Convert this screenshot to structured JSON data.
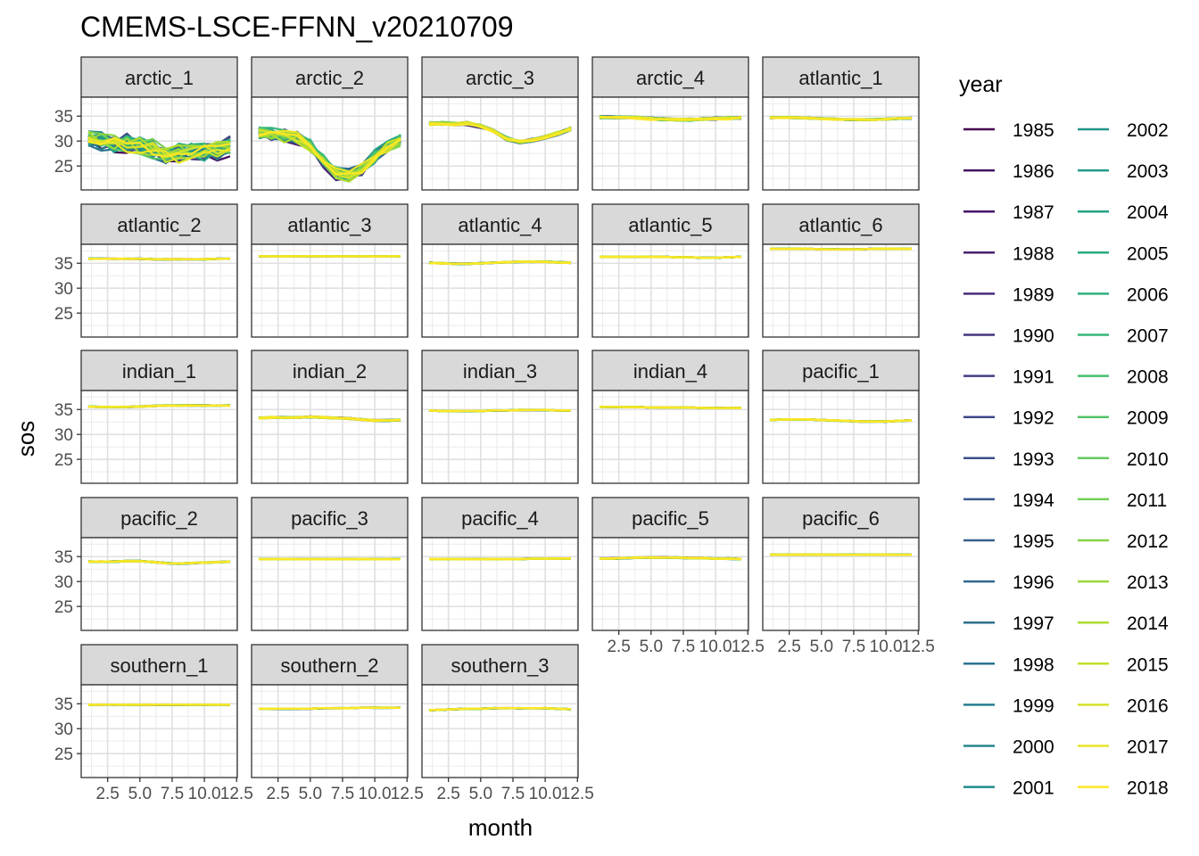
{
  "chart_data": {
    "type": "line",
    "title": "CMEMS-LSCE-FFNN_v20210709",
    "xlabel": "month",
    "ylabel": "sos",
    "x_ticks": [
      "2.5",
      "5.0",
      "7.5",
      "10.0",
      "12.5"
    ],
    "x_tick_values": [
      2.5,
      5.0,
      7.5,
      10.0,
      12.5
    ],
    "y_ticks": [
      "25",
      "30",
      "35"
    ],
    "y_tick_values": [
      25,
      30,
      35
    ],
    "xlim": [
      0.45,
      12.55
    ],
    "ylim": [
      20.2,
      38.8
    ],
    "grid": true,
    "legend": {
      "title": "year",
      "position": "right",
      "columns": 2,
      "items": [
        "1985",
        "1986",
        "1987",
        "1988",
        "1989",
        "1990",
        "1991",
        "1992",
        "1993",
        "1994",
        "1995",
        "1996",
        "1997",
        "1998",
        "1999",
        "2000",
        "2001",
        "2002",
        "2003",
        "2004",
        "2005",
        "2006",
        "2007",
        "2008",
        "2009",
        "2010",
        "2011",
        "2012",
        "2013",
        "2014",
        "2015",
        "2016",
        "2017",
        "2018"
      ]
    },
    "palette": "viridis",
    "series_key": "year",
    "years_start": 1985,
    "years_end": 2018,
    "panels": [
      {
        "name": "arctic_1",
        "profile": [
          30.5,
          30.0,
          29.5,
          29.5,
          29.0,
          28.5,
          27.5,
          27.5,
          28.0,
          28.0,
          28.0,
          29.0
        ],
        "variability": 2.2,
        "x_tick_labels": false
      },
      {
        "name": "arctic_2",
        "profile": [
          31.5,
          31.5,
          31.0,
          30.5,
          29.0,
          26.0,
          23.5,
          23.0,
          24.5,
          27.0,
          29.0,
          30.0
        ],
        "variability": 1.5,
        "x_tick_labels": false
      },
      {
        "name": "arctic_3",
        "profile": [
          33.5,
          33.5,
          33.5,
          33.5,
          33.0,
          32.0,
          30.5,
          29.8,
          30.2,
          30.8,
          31.5,
          32.5
        ],
        "variability": 0.4,
        "x_tick_labels": false
      },
      {
        "name": "arctic_4",
        "profile": [
          34.8,
          34.8,
          34.8,
          34.7,
          34.5,
          34.4,
          34.3,
          34.3,
          34.4,
          34.5,
          34.6,
          34.7
        ],
        "variability": 0.3,
        "x_tick_labels": false
      },
      {
        "name": "atlantic_1",
        "profile": [
          34.7,
          34.7,
          34.7,
          34.6,
          34.5,
          34.4,
          34.3,
          34.3,
          34.3,
          34.4,
          34.5,
          34.6
        ],
        "variability": 0.15,
        "x_tick_labels": false
      },
      {
        "name": "atlantic_2",
        "profile": [
          35.9,
          35.9,
          35.9,
          35.9,
          35.9,
          35.8,
          35.8,
          35.8,
          35.8,
          35.8,
          35.9,
          35.9
        ],
        "variability": 0.06,
        "x_tick_labels": false
      },
      {
        "name": "atlantic_3",
        "profile": [
          36.4,
          36.4,
          36.4,
          36.4,
          36.4,
          36.4,
          36.4,
          36.4,
          36.4,
          36.4,
          36.4,
          36.4
        ],
        "variability": 0.05,
        "x_tick_labels": false
      },
      {
        "name": "atlantic_4",
        "profile": [
          35.1,
          35.0,
          34.9,
          34.9,
          35.0,
          35.1,
          35.2,
          35.3,
          35.3,
          35.3,
          35.2,
          35.1
        ],
        "variability": 0.1,
        "x_tick_labels": false
      },
      {
        "name": "atlantic_5",
        "profile": [
          36.3,
          36.3,
          36.3,
          36.3,
          36.3,
          36.3,
          36.2,
          36.2,
          36.1,
          36.1,
          36.2,
          36.3
        ],
        "variability": 0.05,
        "x_tick_labels": false
      },
      {
        "name": "atlantic_6",
        "profile": [
          37.9,
          37.9,
          37.9,
          37.9,
          37.8,
          37.8,
          37.8,
          37.8,
          37.9,
          37.9,
          37.9,
          37.9
        ],
        "variability": 0.05,
        "x_tick_labels": false
      },
      {
        "name": "indian_1",
        "profile": [
          35.6,
          35.5,
          35.5,
          35.5,
          35.6,
          35.7,
          35.8,
          35.8,
          35.8,
          35.8,
          35.8,
          35.8
        ],
        "variability": 0.08,
        "x_tick_labels": false
      },
      {
        "name": "indian_2",
        "profile": [
          33.3,
          33.4,
          33.4,
          33.4,
          33.5,
          33.4,
          33.3,
          33.2,
          33.0,
          32.8,
          32.8,
          32.9
        ],
        "variability": 0.15,
        "x_tick_labels": false
      },
      {
        "name": "indian_3",
        "profile": [
          34.8,
          34.7,
          34.7,
          34.7,
          34.7,
          34.8,
          34.8,
          34.9,
          34.9,
          34.9,
          34.8,
          34.8
        ],
        "variability": 0.06,
        "x_tick_labels": false
      },
      {
        "name": "indian_4",
        "profile": [
          35.5,
          35.5,
          35.5,
          35.5,
          35.4,
          35.4,
          35.4,
          35.4,
          35.3,
          35.3,
          35.3,
          35.3
        ],
        "variability": 0.05,
        "x_tick_labels": false
      },
      {
        "name": "pacific_1",
        "profile": [
          32.9,
          33.0,
          33.0,
          33.0,
          32.9,
          32.8,
          32.7,
          32.6,
          32.6,
          32.6,
          32.7,
          32.8
        ],
        "variability": 0.08,
        "x_tick_labels": false
      },
      {
        "name": "pacific_2",
        "profile": [
          34.0,
          34.0,
          34.0,
          34.1,
          34.1,
          33.9,
          33.7,
          33.6,
          33.7,
          33.8,
          33.9,
          34.0
        ],
        "variability": 0.1,
        "x_tick_labels": false
      },
      {
        "name": "pacific_3",
        "profile": [
          34.5,
          34.5,
          34.5,
          34.5,
          34.5,
          34.5,
          34.5,
          34.5,
          34.5,
          34.5,
          34.5,
          34.5
        ],
        "variability": 0.05,
        "x_tick_labels": false
      },
      {
        "name": "pacific_4",
        "profile": [
          34.5,
          34.5,
          34.5,
          34.5,
          34.5,
          34.5,
          34.5,
          34.5,
          34.6,
          34.6,
          34.6,
          34.6
        ],
        "variability": 0.08,
        "x_tick_labels": false
      },
      {
        "name": "pacific_5",
        "profile": [
          34.6,
          34.6,
          34.7,
          34.8,
          34.8,
          34.8,
          34.8,
          34.7,
          34.7,
          34.6,
          34.6,
          34.5
        ],
        "variability": 0.1,
        "x_tick_labels": true
      },
      {
        "name": "pacific_6",
        "profile": [
          35.4,
          35.4,
          35.4,
          35.4,
          35.4,
          35.4,
          35.4,
          35.4,
          35.4,
          35.4,
          35.4,
          35.4
        ],
        "variability": 0.04,
        "x_tick_labels": true
      },
      {
        "name": "southern_1",
        "profile": [
          34.8,
          34.8,
          34.8,
          34.8,
          34.8,
          34.8,
          34.8,
          34.8,
          34.8,
          34.8,
          34.8,
          34.8
        ],
        "variability": 0.04,
        "x_tick_labels": true
      },
      {
        "name": "southern_2",
        "profile": [
          34.0,
          34.0,
          34.0,
          34.0,
          34.0,
          34.1,
          34.1,
          34.1,
          34.2,
          34.2,
          34.2,
          34.2
        ],
        "variability": 0.05,
        "x_tick_labels": true
      },
      {
        "name": "southern_3",
        "profile": [
          33.7,
          33.8,
          33.9,
          34.0,
          34.0,
          34.1,
          34.1,
          34.1,
          34.1,
          34.1,
          34.0,
          33.9
        ],
        "variability": 0.06,
        "x_tick_labels": true
      }
    ]
  }
}
